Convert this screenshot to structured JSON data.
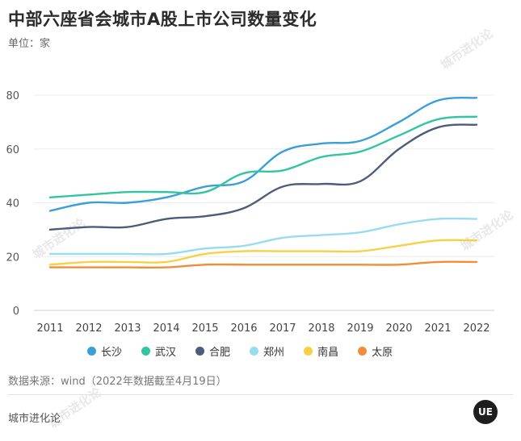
{
  "header": {
    "title": "中部六座省会城市A股上市公司数量变化",
    "unit": "单位：家"
  },
  "footer": {
    "source": "数据来源：wind（2022年数据截至4月19日）",
    "brand": "城市进化论",
    "logo_text": "UE"
  },
  "watermarks": [
    "城市进化论",
    "城市进化论",
    "城市进化论",
    "城市进化论"
  ],
  "chart_data": {
    "type": "line",
    "title": "中部六座省会城市A股上市公司数量变化",
    "ylabel": "单位：家",
    "x": [
      "2011",
      "2012",
      "2013",
      "2014",
      "2015",
      "2016",
      "2017",
      "2018",
      "2019",
      "2020",
      "2021",
      "2022"
    ],
    "ylim": [
      0,
      80
    ],
    "yticks": [
      "0",
      "20",
      "40",
      "60",
      "80"
    ],
    "grid": true,
    "legend_position": "bottom",
    "series": [
      {
        "name": "长沙",
        "color": "#3a9fd8",
        "values": [
          37,
          40,
          40,
          42,
          46,
          48,
          59,
          62,
          63,
          70,
          78,
          79
        ]
      },
      {
        "name": "武汉",
        "color": "#33c4a2",
        "values": [
          42,
          43,
          44,
          44,
          44,
          51,
          52,
          57,
          59,
          65,
          71,
          72
        ]
      },
      {
        "name": "合肥",
        "color": "#4c5c7a",
        "values": [
          30,
          31,
          31,
          34,
          35,
          38,
          46,
          47,
          48,
          60,
          68,
          69
        ]
      },
      {
        "name": "郑州",
        "color": "#96dcf0",
        "values": [
          21,
          21,
          21,
          21,
          23,
          24,
          27,
          28,
          29,
          32,
          34,
          34
        ]
      },
      {
        "name": "南昌",
        "color": "#f8d046",
        "values": [
          17,
          18,
          18,
          18,
          21,
          22,
          22,
          22,
          22,
          24,
          26,
          26
        ]
      },
      {
        "name": "太原",
        "color": "#f28c3a",
        "values": [
          16,
          16,
          16,
          16,
          17,
          17,
          17,
          17,
          17,
          17,
          18,
          18
        ]
      }
    ]
  }
}
